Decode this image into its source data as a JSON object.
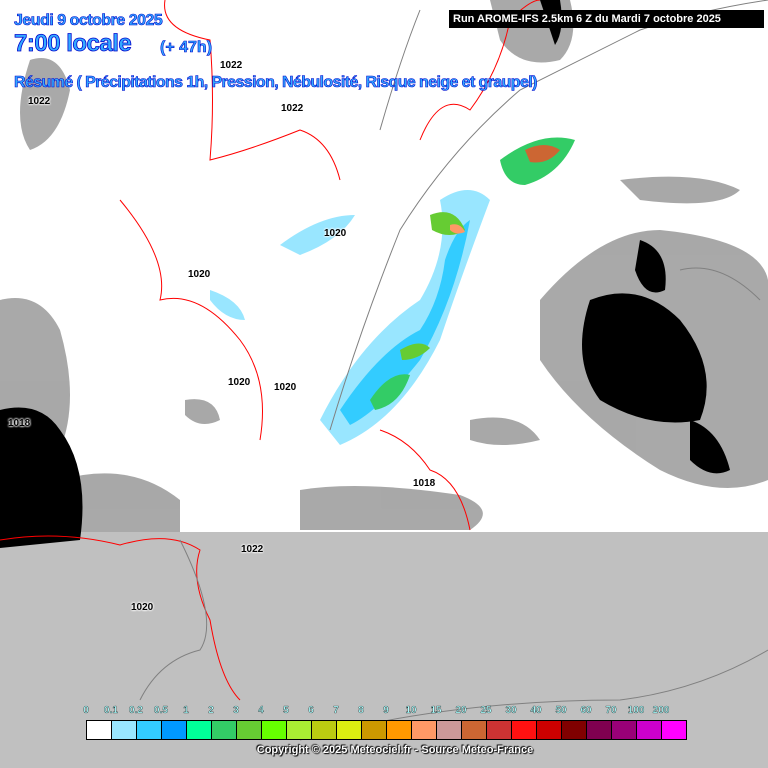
{
  "header": {
    "date": "Jeudi 9 octobre 2025",
    "time": "7:00 locale",
    "lead": "(+ 47h)",
    "summary": "Résumé ( Précipitations 1h, Pression, Nébulosité, Risque neige et graupel)",
    "run": "Run AROME-IFS 2.5km 6 Z du Mardi 7 octobre 2025"
  },
  "isobar_labels": [
    "1022",
    "1022",
    "1022",
    "1020",
    "1020",
    "1020",
    "1020",
    "1018",
    "1018",
    "1022",
    "1020"
  ],
  "legend": {
    "labels": [
      "0",
      "0.1",
      "0.2",
      "0.5",
      "1",
      "2",
      "3",
      "4",
      "5",
      "6",
      "7",
      "8",
      "9",
      "10",
      "15",
      "20",
      "25",
      "30",
      "40",
      "50",
      "60",
      "70",
      "100",
      "200"
    ],
    "colors": [
      "#ffffff",
      "#99e6ff",
      "#33ccff",
      "#0099ff",
      "#00ff99",
      "#33cc66",
      "#66cc33",
      "#66ff00",
      "#aaee33",
      "#bbcc11",
      "#ddee11",
      "#cc9900",
      "#ff9900",
      "#ff9966",
      "#cc9999",
      "#cc6633",
      "#cc3333",
      "#ff1111",
      "#cc0000",
      "#800000",
      "#7f0050",
      "#990077",
      "#cc00cc",
      "#ff00ff"
    ]
  },
  "copyright": "Copyright © 2025 Meteociel.fr - Source Meteo-France"
}
